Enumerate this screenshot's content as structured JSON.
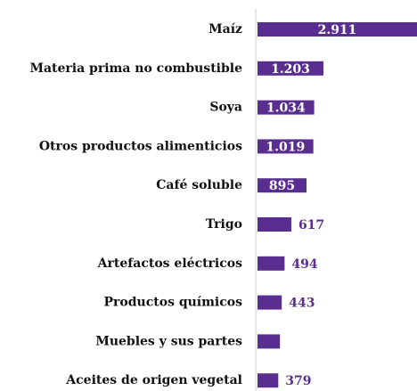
{
  "chart_data": {
    "type": "bar",
    "orientation": "horizontal",
    "categories": [
      "Maíz",
      "Materia prima no combustible",
      "Soya",
      "Otros productos alimenticios",
      "Café soluble",
      "Trigo",
      "Artefactos eléctricos",
      "Productos químicos",
      "Muebles y sus partes",
      "Aceites de origen vegetal"
    ],
    "values": [
      2911,
      1203,
      1034,
      1019,
      895,
      617,
      494,
      443,
      410,
      379
    ],
    "value_labels": [
      "2.911",
      "1.203",
      "1.034",
      "1.019",
      "895",
      "617",
      "494",
      "443",
      null,
      "379"
    ],
    "color": "#5a2d91"
  }
}
